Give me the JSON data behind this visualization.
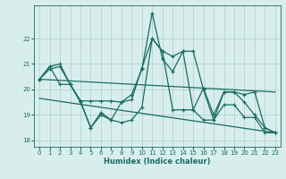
{
  "x": [
    0,
    1,
    2,
    3,
    4,
    5,
    6,
    7,
    8,
    9,
    10,
    11,
    12,
    13,
    14,
    15,
    16,
    17,
    18,
    19,
    20,
    21,
    22,
    23
  ],
  "main_line": [
    20.4,
    20.8,
    20.9,
    20.2,
    19.5,
    18.5,
    19.0,
    18.8,
    19.5,
    19.8,
    20.8,
    23.0,
    21.2,
    20.7,
    21.5,
    21.5,
    20.0,
    18.8,
    19.9,
    19.9,
    19.8,
    19.9,
    18.5,
    18.3
  ],
  "upper_env": [
    20.4,
    20.9,
    21.0,
    20.2,
    19.55,
    19.55,
    19.55,
    19.55,
    19.5,
    19.6,
    20.85,
    22.0,
    21.5,
    21.3,
    21.5,
    19.2,
    20.05,
    19.0,
    19.9,
    19.9,
    19.5,
    19.0,
    18.5,
    18.3
  ],
  "lower_env": [
    20.4,
    20.9,
    20.2,
    20.2,
    19.55,
    18.5,
    19.1,
    18.8,
    18.7,
    18.8,
    19.3,
    22.0,
    21.5,
    19.2,
    19.2,
    19.2,
    18.8,
    18.8,
    19.4,
    19.4,
    18.9,
    18.9,
    18.3,
    18.3
  ],
  "trend_upper_start": 20.4,
  "trend_upper_end": 19.9,
  "trend_lower_start": 19.65,
  "trend_lower_end": 18.3,
  "background_color": "#d8eeed",
  "line_color": "#1a6b63",
  "grid_color": "#aacfcb",
  "xlabel": "Humidex (Indice chaleur)",
  "ylim": [
    17.75,
    23.3
  ],
  "xlim": [
    -0.5,
    23.5
  ],
  "yticks": [
    18,
    19,
    20,
    21,
    22
  ],
  "xticks": [
    0,
    1,
    2,
    3,
    4,
    5,
    6,
    7,
    8,
    9,
    10,
    11,
    12,
    13,
    14,
    15,
    16,
    17,
    18,
    19,
    20,
    21,
    22,
    23
  ]
}
